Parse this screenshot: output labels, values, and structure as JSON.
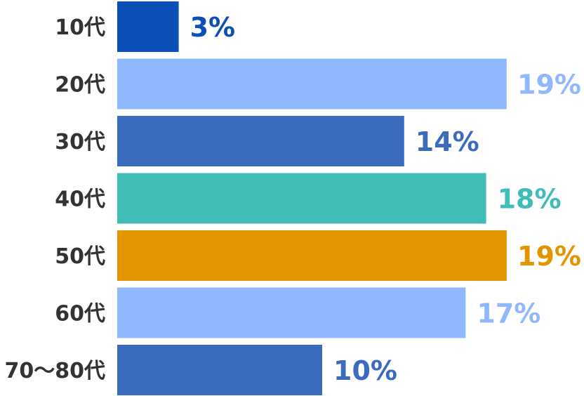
{
  "chart_data": {
    "type": "bar",
    "orientation": "horizontal",
    "categories": [
      "10代",
      "20代",
      "30代",
      "40代",
      "50代",
      "60代",
      "70〜80代"
    ],
    "values": [
      3,
      19,
      14,
      18,
      19,
      17,
      10
    ],
    "value_labels": [
      "3%",
      "19%",
      "14%",
      "18%",
      "19%",
      "17%",
      "10%"
    ],
    "colors": [
      "#0b4fb8",
      "#8fb8ff",
      "#3a6bbd",
      "#40bdb7",
      "#e39500",
      "#8fb8ff",
      "#3a6bbd"
    ],
    "title": "",
    "xlabel": "",
    "ylabel": "",
    "xlim": [
      0,
      19
    ],
    "grid": false,
    "legend": "none"
  }
}
